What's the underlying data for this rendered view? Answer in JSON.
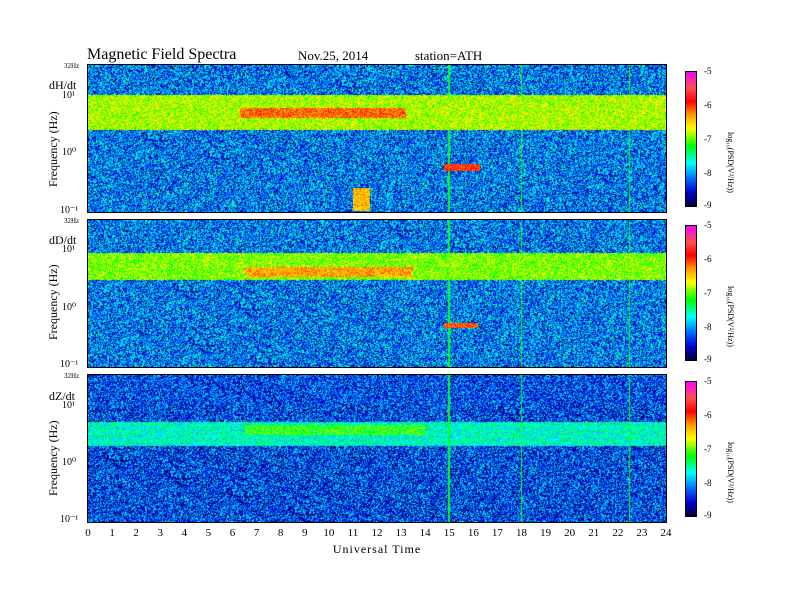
{
  "header": {
    "title": "Magnetic  Field  Spectra",
    "date": "Nov.25, 2014",
    "station": "station=ATH"
  },
  "panels": [
    {
      "component": "dH/dt",
      "nyquist_label": "32Hz",
      "y_ticks": [
        "10¹",
        "10⁰",
        "10⁻¹"
      ],
      "y_axis_label": "Frequency  (Hz)",
      "colorbar_ticks": [
        "-5",
        "-6",
        "-7",
        "-8",
        "-9"
      ],
      "colorbar_label": "log₁₀(PSD(V²/Hz))"
    },
    {
      "component": "dD/dt",
      "nyquist_label": "32Hz",
      "y_ticks": [
        "10¹",
        "10⁰",
        "10⁻¹"
      ],
      "y_axis_label": "Frequency  (Hz)",
      "colorbar_ticks": [
        "-5",
        "-6",
        "-7",
        "-8",
        "-9"
      ],
      "colorbar_label": "log₁₀(PSD(V²/Hz))"
    },
    {
      "component": "dZ/dt",
      "nyquist_label": "32Hz",
      "y_ticks": [
        "10¹",
        "10⁰",
        "10⁻¹"
      ],
      "y_axis_label": "Frequency  (Hz)",
      "colorbar_ticks": [
        "-5",
        "-6",
        "-7",
        "-8",
        "-9"
      ],
      "colorbar_label": "log₁₀(PSD(V²/Hz))"
    }
  ],
  "x_axis": {
    "label": "Universal Time",
    "ticks": [
      "0",
      "1",
      "2",
      "3",
      "4",
      "5",
      "6",
      "7",
      "8",
      "9",
      "10",
      "11",
      "12",
      "13",
      "14",
      "15",
      "16",
      "17",
      "18",
      "19",
      "20",
      "21",
      "22",
      "23",
      "24"
    ]
  },
  "chart_data": {
    "type": "heatmap",
    "title": "Magnetic  Field  Spectra",
    "subtitle": "Nov.25, 2014   station=ATH",
    "xlabel": "Universal Time",
    "ylabel": "Frequency  (Hz)",
    "xlim": [
      0,
      24
    ],
    "ylim": [
      0.1,
      32
    ],
    "y_scale": "log",
    "colorbar_label": "log₁₀(PSD(V²/Hz))",
    "colorbar_range": [
      -9,
      -5
    ],
    "colormap": [
      "#000040",
      "#0000cc",
      "#0066ff",
      "#00ffff",
      "#00ff00",
      "#ffff00",
      "#ff9900",
      "#ff0000",
      "#ff5050",
      "#ff00ff"
    ],
    "panels": [
      {
        "name": "dH/dt",
        "baseline": -8.1,
        "features": [
          {
            "f_low": 2.5,
            "f_high": 10,
            "t_start": 0,
            "t_end": 24,
            "level": -6.9
          },
          {
            "f_low": 4.0,
            "f_high": 6.0,
            "t_start": 6.3,
            "t_end": 13.2,
            "level": -6.2
          },
          {
            "f_low": 0.5,
            "f_high": 0.65,
            "t_start": 14.8,
            "t_end": 16.3,
            "level": -6.0
          },
          {
            "f_low": 0.1,
            "f_high": 0.25,
            "t_start": 11.0,
            "t_end": 11.7,
            "level": -6.5
          },
          {
            "f_low": 24,
            "f_high": 32,
            "t_start": 0,
            "t_end": 24,
            "level": -8.9
          }
        ]
      },
      {
        "name": "dD/dt",
        "baseline": -8.1,
        "features": [
          {
            "f_low": 3.0,
            "f_high": 9,
            "t_start": 0,
            "t_end": 24,
            "level": -7.0
          },
          {
            "f_low": 3.5,
            "f_high": 5.0,
            "t_start": 6.5,
            "t_end": 13.5,
            "level": -6.4
          },
          {
            "f_low": 0.45,
            "f_high": 0.55,
            "t_start": 14.8,
            "t_end": 16.2,
            "level": -6.1
          },
          {
            "f_low": 24,
            "f_high": 32,
            "t_start": 0,
            "t_end": 24,
            "level": -8.9
          }
        ]
      },
      {
        "name": "dZ/dt",
        "baseline": -8.3,
        "features": [
          {
            "f_low": 2.0,
            "f_high": 5.0,
            "t_start": 0,
            "t_end": 24,
            "level": -7.6
          },
          {
            "f_low": 3.0,
            "f_high": 4.5,
            "t_start": 6.5,
            "t_end": 14.0,
            "level": -7.2
          },
          {
            "f_low": 10,
            "f_high": 32,
            "t_start": 0,
            "t_end": 24,
            "level": -8.8
          }
        ]
      }
    ],
    "vertical_artifacts_ut": [
      15.0,
      18.0,
      22.5
    ]
  }
}
